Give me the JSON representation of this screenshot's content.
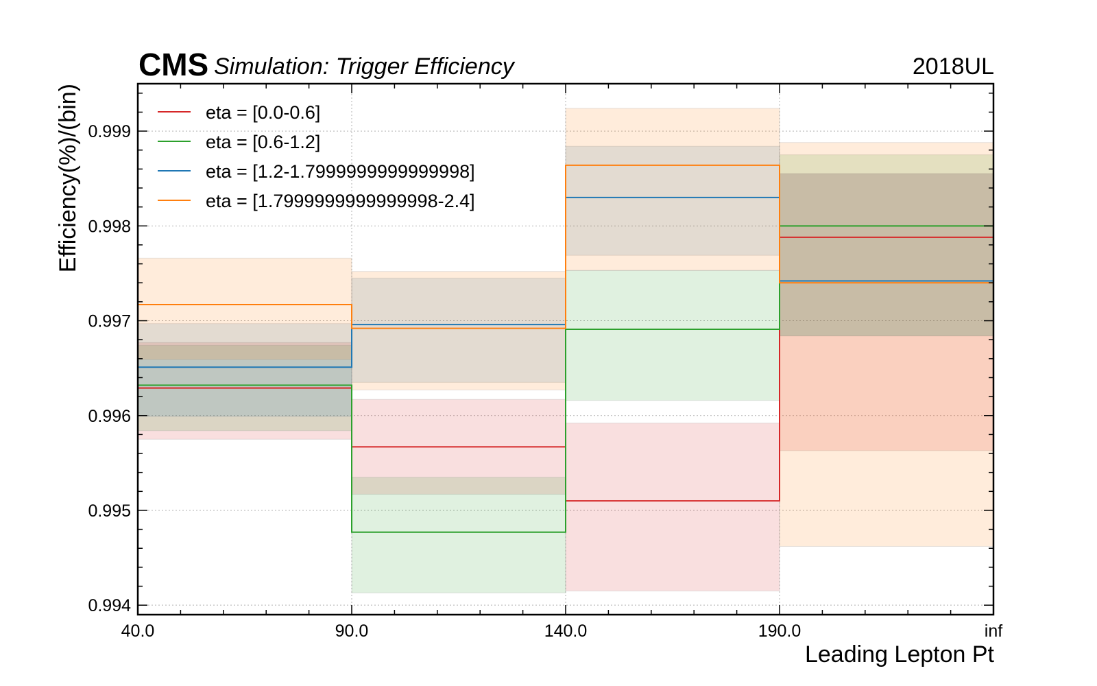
{
  "chart_data": {
    "type": "line",
    "experiment": "CMS",
    "title": "Simulation: Trigger Efficiency",
    "year_label": "2018UL",
    "xlabel": "Leading Lepton Pt",
    "ylabel": "Efficiency(%)/(bin)",
    "bin_edges": [
      "40.0",
      "90.0",
      "140.0",
      "190.0",
      "inf"
    ],
    "ylim": [
      0.9939,
      0.9995
    ],
    "yticks": [
      0.994,
      0.995,
      0.996,
      0.997,
      0.998,
      0.999
    ],
    "ytick_labels": [
      "0.994",
      "0.995",
      "0.996",
      "0.997",
      "0.998",
      "0.999"
    ],
    "grid": true,
    "legend_position": "top-left",
    "series": [
      {
        "name": "eta = [0.0-0.6]",
        "color": "#d62728",
        "values": [
          0.99629,
          0.99567,
          0.9951,
          0.99788
        ],
        "lower": [
          0.99575,
          0.99517,
          0.99415,
          0.99563
        ],
        "upper": [
          0.99677,
          0.99617,
          0.99592,
          0.99855
        ]
      },
      {
        "name": "eta = [0.6-1.2]",
        "color": "#2ca02c",
        "values": [
          0.99632,
          0.99477,
          0.99691,
          0.998
        ],
        "lower": [
          0.99584,
          0.99413,
          0.99616,
          0.99684
        ],
        "upper": [
          0.99674,
          0.99535,
          0.99753,
          0.99875
        ]
      },
      {
        "name": "eta = [1.2-1.7999999999999998]",
        "color": "#1f77b4",
        "values": [
          0.99651,
          0.99696,
          0.9983,
          0.99742
        ],
        "lower": [
          0.99599,
          0.99635,
          0.99769,
          0.99684
        ],
        "upper": [
          0.99697,
          0.99745,
          0.99884,
          0.99855
        ]
      },
      {
        "name": "eta = [1.7999999999999998-2.4]",
        "color": "#ff7f0e",
        "values": [
          0.99717,
          0.99692,
          0.99864,
          0.9974
        ],
        "lower": [
          0.99659,
          0.99627,
          0.99753,
          0.99462
        ],
        "upper": [
          0.99766,
          0.99752,
          0.99924,
          0.99888
        ]
      }
    ]
  }
}
